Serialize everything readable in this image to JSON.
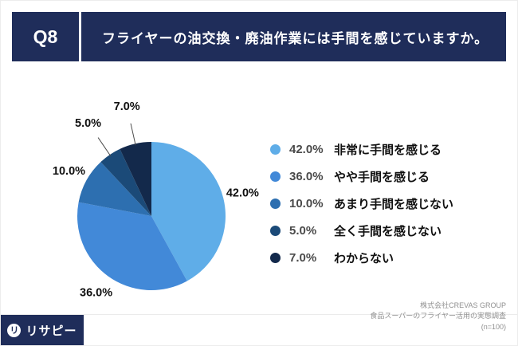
{
  "theme": {
    "navy": "#1f2d5a",
    "background": "#ffffff"
  },
  "header": {
    "question_no": "Q8",
    "question": "フライヤーの油交換・廃油作業には手間を感じていますか。"
  },
  "chart_data": {
    "type": "pie",
    "unit": "%",
    "n": 100,
    "start_angle_deg": 0,
    "direction": "clockwise",
    "legend_position": "right",
    "slices": [
      {
        "label": "非常に手間を感じる",
        "value": 42.0,
        "display": "42.0%",
        "color": "#5fade8"
      },
      {
        "label": "やや手間を感じる",
        "value": 36.0,
        "display": "36.0%",
        "color": "#4289d8"
      },
      {
        "label": "あまり手間を感じない",
        "value": 10.0,
        "display": "10.0%",
        "color": "#2d6fb0"
      },
      {
        "label": "全く手間を感じない",
        "value": 5.0,
        "display": "5.0%",
        "color": "#1b4a78"
      },
      {
        "label": "わからない",
        "value": 7.0,
        "display": "7.0%",
        "color": "#13294b"
      }
    ]
  },
  "footer": {
    "logo_mark": "リ",
    "logo_text": "リサピー",
    "credit_lines": [
      "株式会社CREVAS GROUP",
      "食品スーパーのフライヤー活用の実態調査",
      "(n=100)"
    ]
  }
}
